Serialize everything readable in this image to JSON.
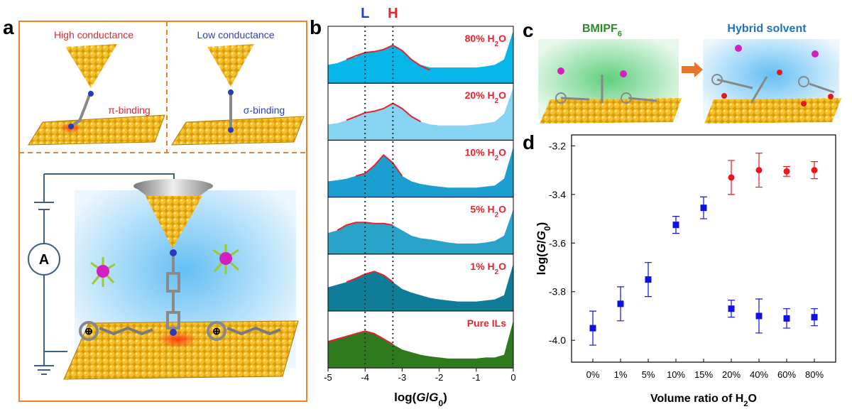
{
  "chart_data": [
    {
      "type": "area",
      "x": [
        -5,
        -4.75,
        -4.5,
        -4.25,
        -4,
        -3.75,
        -3.5,
        -3.25,
        -3,
        -2.75,
        -2.5,
        -2.25,
        -2,
        -1.75,
        -1.5,
        -1.25,
        -1,
        -0.75,
        -0.5,
        -0.25,
        0
      ],
      "xlim": [
        -5,
        0
      ],
      "xticks": [
        -5,
        -4,
        -3,
        -2,
        -1,
        0
      ],
      "x_label": [
        "log(",
        {
          "text": "G",
          "style": "italic"
        },
        "/",
        {
          "text": "G",
          "style": "italic"
        },
        {
          "text": "0",
          "style": "sub"
        },
        ")"
      ],
      "fit_color": "#e3262d",
      "markers": [
        {
          "label": "L",
          "value": -4,
          "color": "#1f3fcf"
        },
        {
          "label": "H",
          "value": -3.25,
          "color": "#e3262d"
        }
      ],
      "panels": [
        {
          "label": [
            "80% H",
            {
              "text": "2",
              "style": "sub"
            },
            "O"
          ],
          "color": "#06b6e8",
          "values": [
            0.35,
            0.38,
            0.45,
            0.5,
            0.6,
            0.6,
            0.65,
            0.72,
            0.62,
            0.45,
            0.35,
            0.3,
            0.3,
            0.3,
            0.3,
            0.3,
            0.3,
            0.32,
            0.35,
            0.45,
            1.0
          ],
          "fit": [
            null,
            null,
            0.45,
            0.52,
            0.58,
            0.6,
            0.64,
            0.72,
            0.62,
            0.45,
            0.33,
            0.25,
            null,
            null,
            null,
            null,
            null,
            null,
            null,
            null,
            null
          ]
        },
        {
          "label": [
            "20% H",
            {
              "text": "2",
              "style": "sub"
            },
            "O"
          ],
          "color": "#86d3f2",
          "values": [
            0.3,
            0.32,
            0.38,
            0.45,
            0.52,
            0.55,
            0.6,
            0.7,
            0.6,
            0.45,
            0.35,
            0.3,
            0.28,
            0.28,
            0.28,
            0.28,
            0.3,
            0.32,
            0.35,
            0.5,
            1.0
          ],
          "fit": [
            null,
            null,
            0.38,
            0.45,
            0.52,
            0.55,
            0.6,
            0.7,
            0.6,
            0.45,
            0.35,
            null,
            null,
            null,
            null,
            null,
            null,
            null,
            null,
            null,
            null
          ]
        },
        {
          "label": [
            "10% H",
            {
              "text": "2",
              "style": "sub"
            },
            "O"
          ],
          "color": "#1b9fd1",
          "values": [
            0.3,
            0.32,
            0.35,
            0.4,
            0.45,
            0.6,
            0.8,
            0.65,
            0.4,
            0.3,
            0.25,
            0.22,
            0.2,
            0.18,
            0.18,
            0.18,
            0.18,
            0.2,
            0.22,
            0.35,
            0.95
          ],
          "fit": [
            null,
            null,
            null,
            0.4,
            0.45,
            0.6,
            0.8,
            0.65,
            0.4,
            null,
            null,
            null,
            null,
            null,
            null,
            null,
            null,
            null,
            null,
            null,
            null
          ]
        },
        {
          "label": [
            "5% H",
            {
              "text": "2",
              "style": "sub"
            },
            "O"
          ],
          "color": "#2aa3c9",
          "values": [
            0.4,
            0.45,
            0.55,
            0.6,
            0.6,
            0.58,
            0.58,
            0.55,
            0.45,
            0.35,
            0.3,
            0.28,
            0.25,
            0.22,
            0.2,
            0.2,
            0.2,
            0.22,
            0.25,
            0.35,
            0.85
          ],
          "fit": [
            null,
            0.45,
            0.55,
            0.6,
            0.6,
            0.58,
            0.58,
            0.55,
            null,
            null,
            null,
            null,
            null,
            null,
            null,
            null,
            null,
            null,
            null,
            null,
            null
          ]
        },
        {
          "label": [
            "1% H",
            {
              "text": "2",
              "style": "sub"
            },
            "O"
          ],
          "color": "#0f7d98",
          "values": [
            0.45,
            0.5,
            0.55,
            0.62,
            0.7,
            0.75,
            0.68,
            0.55,
            0.42,
            0.35,
            0.3,
            0.25,
            0.22,
            0.2,
            0.18,
            0.18,
            0.18,
            0.2,
            0.22,
            0.3,
            0.9
          ],
          "fit": [
            null,
            null,
            0.55,
            0.62,
            0.7,
            0.75,
            0.68,
            0.55,
            null,
            null,
            null,
            null,
            null,
            null,
            null,
            null,
            null,
            null,
            null,
            null,
            null
          ]
        },
        {
          "label": [
            "Pure ILs"
          ],
          "color": "#2f7a1f",
          "values": [
            0.5,
            0.55,
            0.6,
            0.65,
            0.7,
            0.65,
            0.55,
            0.45,
            0.35,
            0.3,
            0.25,
            0.22,
            0.2,
            0.18,
            0.18,
            0.18,
            0.18,
            0.2,
            0.2,
            0.25,
            0.9
          ],
          "fit": [
            0.5,
            0.55,
            0.6,
            0.65,
            0.7,
            0.65,
            0.55,
            0.45,
            null,
            null,
            null,
            null,
            null,
            null,
            null,
            null,
            null,
            null,
            null,
            null,
            null
          ]
        }
      ]
    },
    {
      "type": "scatter",
      "categories": [
        "0%",
        "1%",
        "5%",
        "10%",
        "15%",
        "20%",
        "40%",
        "60%",
        "80%"
      ],
      "ylim": [
        -4.09,
        -3.155
      ],
      "yticks": [
        {
          "value": -4.0,
          "label": "-4.0"
        },
        {
          "value": -3.8,
          "label": "-3.8"
        },
        {
          "value": -3.6,
          "label": "-3.6"
        },
        {
          "value": -3.4,
          "label": "-3.4"
        },
        {
          "value": -3.2,
          "label": "-3.2"
        }
      ],
      "x_label": [
        "Volume ratio of H",
        {
          "text": "2",
          "style": "sub"
        },
        "O"
      ],
      "y_label": [
        "log(",
        {
          "text": "G",
          "style": "italic"
        },
        "/",
        {
          "text": "G",
          "style": "italic"
        },
        {
          "text": "0",
          "style": "sub"
        },
        ")"
      ],
      "series": [
        {
          "color": "#1010e0",
          "marker": "square",
          "values": [
            -3.95,
            -3.85,
            -3.75,
            -3.525,
            -3.455,
            -3.87,
            -3.9,
            -3.91,
            -3.905
          ],
          "errors": [
            0.07,
            0.07,
            0.07,
            0.035,
            0.045,
            0.035,
            0.07,
            0.04,
            0.035
          ]
        },
        {
          "color": "#f0141e",
          "marker": "circle",
          "values": [
            null,
            null,
            null,
            null,
            null,
            -3.33,
            -3.3,
            -3.305,
            -3.3
          ],
          "errors": [
            null,
            null,
            null,
            null,
            null,
            0.07,
            0.07,
            0.02,
            0.035
          ]
        }
      ]
    }
  ],
  "panel_labels": [
    "a",
    "b",
    "c",
    "d"
  ],
  "panel_a": {
    "high": "High conductance",
    "low": "Low conductance",
    "pi": "π-binding",
    "sigma": "σ-binding",
    "meter": "A"
  },
  "panel_c": {
    "left": [
      "BMIPF",
      {
        "text": "6",
        "style": "sub"
      }
    ],
    "right": "Hybrid solvent"
  }
}
